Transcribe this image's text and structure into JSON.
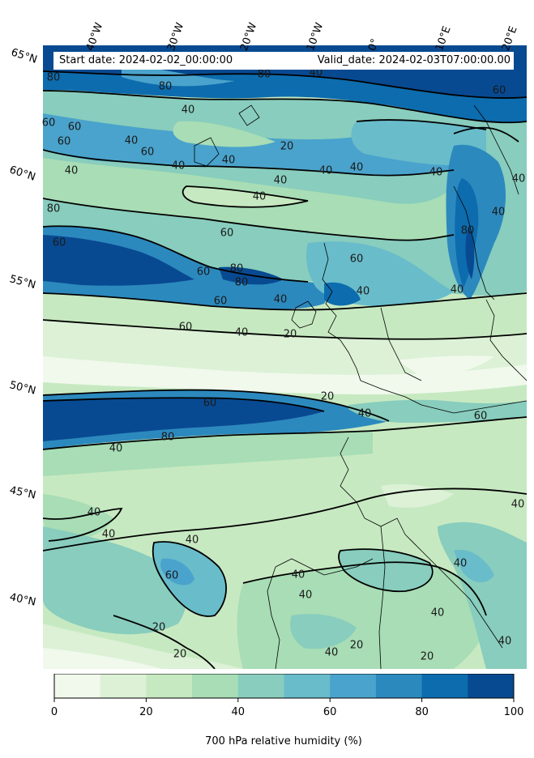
{
  "header": {
    "start_date": "Start date: 2024-02-02_00:00:00",
    "valid_date": "Valid_date: 2024-02-03T07:00:00.00"
  },
  "longitude_labels": [
    "40°W",
    "30°W",
    "20°W",
    "10°W",
    "0°",
    "10°E",
    "20°E"
  ],
  "latitude_labels": [
    "65°N",
    "60°N",
    "55°N",
    "50°N",
    "45°N",
    "40°N"
  ],
  "colorbar": {
    "label": "700 hPa relative humidity (%)",
    "ticks": [
      "0",
      "20",
      "40",
      "60",
      "80",
      "100"
    ],
    "min": 0,
    "max": 100,
    "levels": [
      0,
      10,
      20,
      30,
      40,
      50,
      60,
      70,
      80,
      90,
      100
    ],
    "colors": [
      "#f0f9ec",
      "#dcf1d6",
      "#c7e9c1",
      "#a8ddb5",
      "#88cdbd",
      "#69bcca",
      "#4aa3cc",
      "#2c89be",
      "#0d6cae",
      "#084a91"
    ]
  },
  "contour_labels": [
    "80",
    "80",
    "80",
    "60",
    "60",
    "40",
    "60",
    "60",
    "40",
    "40",
    "80",
    "60",
    "40",
    "20",
    "40",
    "40",
    "40",
    "40",
    "40",
    "40",
    "40",
    "60",
    "40",
    "60",
    "60",
    "80",
    "80",
    "60",
    "80",
    "60",
    "40",
    "40",
    "60",
    "40",
    "20",
    "20",
    "40",
    "60",
    "60",
    "80",
    "40",
    "40",
    "40",
    "40",
    "40",
    "60",
    "20",
    "20",
    "40",
    "40",
    "40",
    "20",
    "40",
    "20",
    "40",
    "40",
    "40",
    "40"
  ]
}
